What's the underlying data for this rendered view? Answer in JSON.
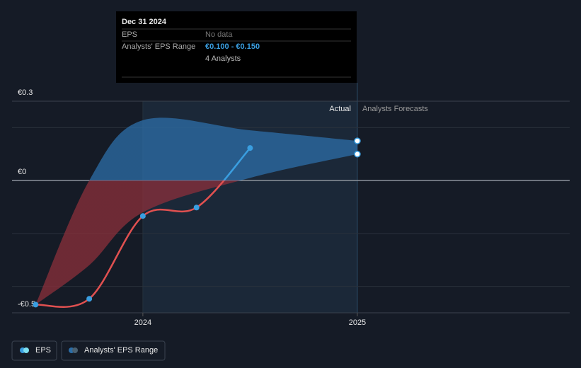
{
  "chart_data": {
    "type": "line",
    "ylim": [
      -0.5,
      0.3
    ],
    "yticks": [
      {
        "value": 0.3,
        "label": "€0.3"
      },
      {
        "value": 0,
        "label": "€0"
      },
      {
        "value": -0.5,
        "label": "-€0.5"
      }
    ],
    "minor_grid": [
      0.2,
      -0.2,
      -0.4
    ],
    "xlim": [
      2023.39,
      2025.99
    ],
    "xticks": [
      2024,
      2025
    ],
    "x": [
      2023.5,
      2023.75,
      2024,
      2024.25,
      2024.5
    ],
    "series": [
      {
        "name": "EPS",
        "color": "#3a9ee0",
        "negative_color": "#e05050",
        "values": [
          -0.469,
          -0.447,
          -0.134,
          -0.102,
          0.123
        ]
      }
    ],
    "range": {
      "name": "Analysts' EPS Range",
      "color": "#2c6ea8",
      "negative_color": "#8b2f3a",
      "x": [
        2023.5,
        2023.75,
        2024,
        2024.5,
        2025
      ],
      "upper": [
        -0.469,
        0.0,
        0.228,
        0.19,
        0.15
      ],
      "lower": [
        -0.469,
        -0.32,
        -0.12,
        0.01,
        0.1
      ]
    },
    "actual_label": "Actual",
    "forecast_label": "Analysts Forecasts",
    "tooltip": {
      "date": "Dec 31 2024",
      "eps_label": "EPS",
      "eps_value": "No data",
      "range_label": "Analysts' EPS Range",
      "range_value": "€0.100 - €0.150",
      "analysts": "4 Analysts"
    }
  }
}
